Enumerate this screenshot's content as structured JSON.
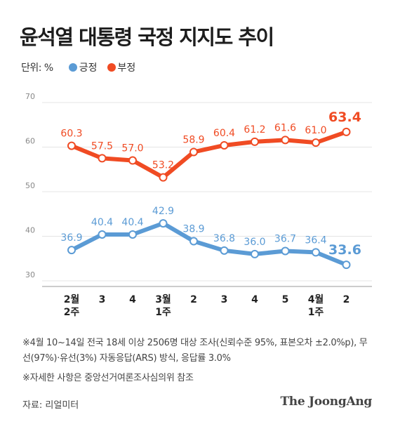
{
  "title": "윤석열 대통령 국정 지지도 추이",
  "unit_label": "단위: %",
  "colors": {
    "positive": "#5b9bd5",
    "negative": "#f04b23",
    "grid": "#e4e4e4",
    "axis": "#999999"
  },
  "chart_data": {
    "type": "line",
    "title": "윤석열 대통령 국정 지지도 추이",
    "ylabel": "",
    "xlabel": "",
    "ylim": [
      30,
      70
    ],
    "yticks": [
      70,
      60,
      50,
      40,
      30
    ],
    "grid": true,
    "legend": "top-left",
    "categories": [
      [
        "2월",
        "2주"
      ],
      [
        "3"
      ],
      [
        "4"
      ],
      [
        "3월",
        "1주"
      ],
      [
        "2"
      ],
      [
        "3"
      ],
      [
        "4"
      ],
      [
        "5"
      ],
      [
        "4월",
        "1주"
      ],
      [
        "2"
      ]
    ],
    "series": [
      {
        "name": "긍정",
        "color": "#5b9bd5",
        "values": [
          36.9,
          40.4,
          40.4,
          42.9,
          38.9,
          36.8,
          36.0,
          36.7,
          36.4,
          33.6
        ],
        "labels": [
          "36.9",
          "40.4",
          "40.4",
          "42.9",
          "38.9",
          "36.8",
          "36.0",
          "36.7",
          "36.4",
          "33.6"
        ]
      },
      {
        "name": "부정",
        "color": "#f04b23",
        "values": [
          60.3,
          57.5,
          57.0,
          53.2,
          58.9,
          60.4,
          61.2,
          61.6,
          61.0,
          63.4
        ],
        "labels": [
          "60.3",
          "57.5",
          "57.0",
          "53.2",
          "58.9",
          "60.4",
          "61.2",
          "61.6",
          "61.0",
          "63.4"
        ]
      }
    ]
  },
  "notes": [
    "※4월 10~14일 전국 18세 이상 2506명 대상 조사(신뢰수준 95%, 표본오차 ±2.0%p), 무선(97%)·유선(3%) 자동응답(ARS) 방식, 응답률 3.0%",
    "※자세한 사항은 중앙선거여론조사심의위 참조"
  ],
  "source": "자료: 리얼미터",
  "brand": "The JoongAng"
}
